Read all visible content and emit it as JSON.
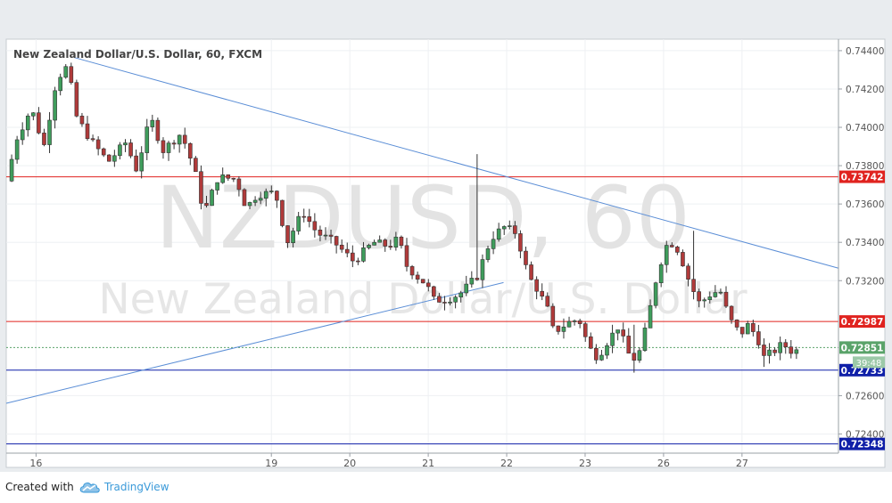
{
  "chart_data": {
    "type": "candlestick",
    "title": "New Zealand Dollar/U.S. Dollar, 60, FXCM",
    "watermark": {
      "line1": "NZDUSD, 60",
      "line2": "New Zealand Dollar/U.S. Dollar"
    },
    "ylim": [
      0.723,
      0.7446
    ],
    "y_ticks": [
      "0.74400",
      "0.74200",
      "0.74000",
      "0.73800",
      "0.73600",
      "0.73400",
      "0.73200",
      "0.72600",
      "0.72400"
    ],
    "x_ticks": [
      {
        "label": "16",
        "t": 1.0
      },
      {
        "label": "19",
        "t": 4.0
      },
      {
        "label": "20",
        "t": 5.0
      },
      {
        "label": "21",
        "t": 6.0
      },
      {
        "label": "22",
        "t": 7.0
      },
      {
        "label": "23",
        "t": 8.0
      },
      {
        "label": "26",
        "t": 9.0
      },
      {
        "label": "27",
        "t": 10.0
      }
    ],
    "x_range": [
      0.62,
      11.23
    ],
    "grid": true,
    "horizontal_levels": [
      {
        "value": 0.73742,
        "label": "0.73742",
        "color": "#e0231f"
      },
      {
        "value": 0.72987,
        "label": "0.72987",
        "color": "#e0231f"
      },
      {
        "value": 0.72733,
        "label": "0.72733",
        "color": "#0f1fa8"
      },
      {
        "value": 0.72348,
        "label": "0.72348",
        "color": "#0f1fa8"
      }
    ],
    "current_price": {
      "value": 0.72851,
      "label": "0.72851",
      "countdown": "39:48",
      "color": "#5aa36a"
    },
    "trendlines": [
      {
        "from": [
          1.48,
          0.74365
        ],
        "to": [
          11.23,
          0.73265
        ],
        "color": "#5b8ed6"
      },
      {
        "from": [
          0.62,
          0.7256
        ],
        "to": [
          6.96,
          0.7319
        ],
        "color": "#5b8ed6"
      }
    ],
    "candle_colors": {
      "up": "#3f9d5c",
      "down": "#b03a3a"
    },
    "price_path": [
      [
        0.62,
        0.7372
      ],
      [
        0.76,
        0.7395
      ],
      [
        0.94,
        0.741
      ],
      [
        1.1,
        0.739
      ],
      [
        1.26,
        0.7425
      ],
      [
        1.4,
        0.7432
      ],
      [
        1.52,
        0.7405
      ],
      [
        1.7,
        0.7393
      ],
      [
        1.92,
        0.7382
      ],
      [
        2.14,
        0.7392
      ],
      [
        2.28,
        0.7378
      ],
      [
        2.46,
        0.7405
      ],
      [
        2.62,
        0.7388
      ],
      [
        2.85,
        0.7397
      ],
      [
        3.02,
        0.7378
      ],
      [
        3.14,
        0.7355
      ],
      [
        3.32,
        0.7374
      ],
      [
        3.55,
        0.7373
      ],
      [
        3.68,
        0.7358
      ],
      [
        3.82,
        0.7365
      ],
      [
        4.05,
        0.7366
      ],
      [
        4.2,
        0.734
      ],
      [
        4.4,
        0.7356
      ],
      [
        4.58,
        0.7345
      ],
      [
        4.8,
        0.734
      ],
      [
        5.05,
        0.733
      ],
      [
        5.3,
        0.734
      ],
      [
        5.5,
        0.7338
      ],
      [
        5.62,
        0.7342
      ],
      [
        5.72,
        0.7328
      ],
      [
        5.86,
        0.7322
      ],
      [
        5.98,
        0.7318
      ],
      [
        6.06,
        0.731
      ],
      [
        6.22,
        0.731
      ],
      [
        6.4,
        0.7313
      ],
      [
        6.62,
        0.7322
      ],
      [
        6.8,
        0.7342
      ],
      [
        6.96,
        0.7348
      ],
      [
        7.12,
        0.7345
      ],
      [
        7.28,
        0.7322
      ],
      [
        7.4,
        0.7315
      ],
      [
        7.52,
        0.7305
      ],
      [
        7.6,
        0.7293
      ],
      [
        7.78,
        0.7298
      ],
      [
        7.92,
        0.73
      ],
      [
        8.05,
        0.7285
      ],
      [
        8.16,
        0.728
      ],
      [
        8.28,
        0.7288
      ],
      [
        8.42,
        0.7296
      ],
      [
        8.55,
        0.7282
      ],
      [
        8.66,
        0.7278
      ],
      [
        8.78,
        0.7296
      ],
      [
        8.9,
        0.732
      ],
      [
        9.02,
        0.7338
      ],
      [
        9.14,
        0.734
      ],
      [
        9.24,
        0.733
      ],
      [
        9.34,
        0.7318
      ],
      [
        9.46,
        0.7308
      ],
      [
        9.6,
        0.7313
      ],
      [
        9.72,
        0.7315
      ],
      [
        9.84,
        0.73
      ],
      [
        9.98,
        0.7292
      ],
      [
        10.08,
        0.7297
      ],
      [
        10.2,
        0.729
      ],
      [
        10.28,
        0.728
      ],
      [
        10.4,
        0.7283
      ],
      [
        10.52,
        0.7287
      ],
      [
        10.64,
        0.7283
      ],
      [
        10.74,
        0.7284
      ]
    ],
    "notable_wicks": [
      {
        "t": 6.54,
        "high": 0.7386,
        "low": 0.7343
      },
      {
        "t": 8.57,
        "high": 0.7297,
        "low": 0.7272
      },
      {
        "t": 9.32,
        "high": 0.7346,
        "low": 0.7331
      },
      {
        "t": 10.18,
        "high": 0.7288,
        "low": 0.7275
      }
    ]
  },
  "footer": {
    "created_with": "Created with",
    "brand": "TradingView"
  },
  "colors": {
    "background": "#ffffff",
    "grid": "#eef0f3",
    "axis_text": "#555555",
    "brand": "#3b9ad9"
  }
}
